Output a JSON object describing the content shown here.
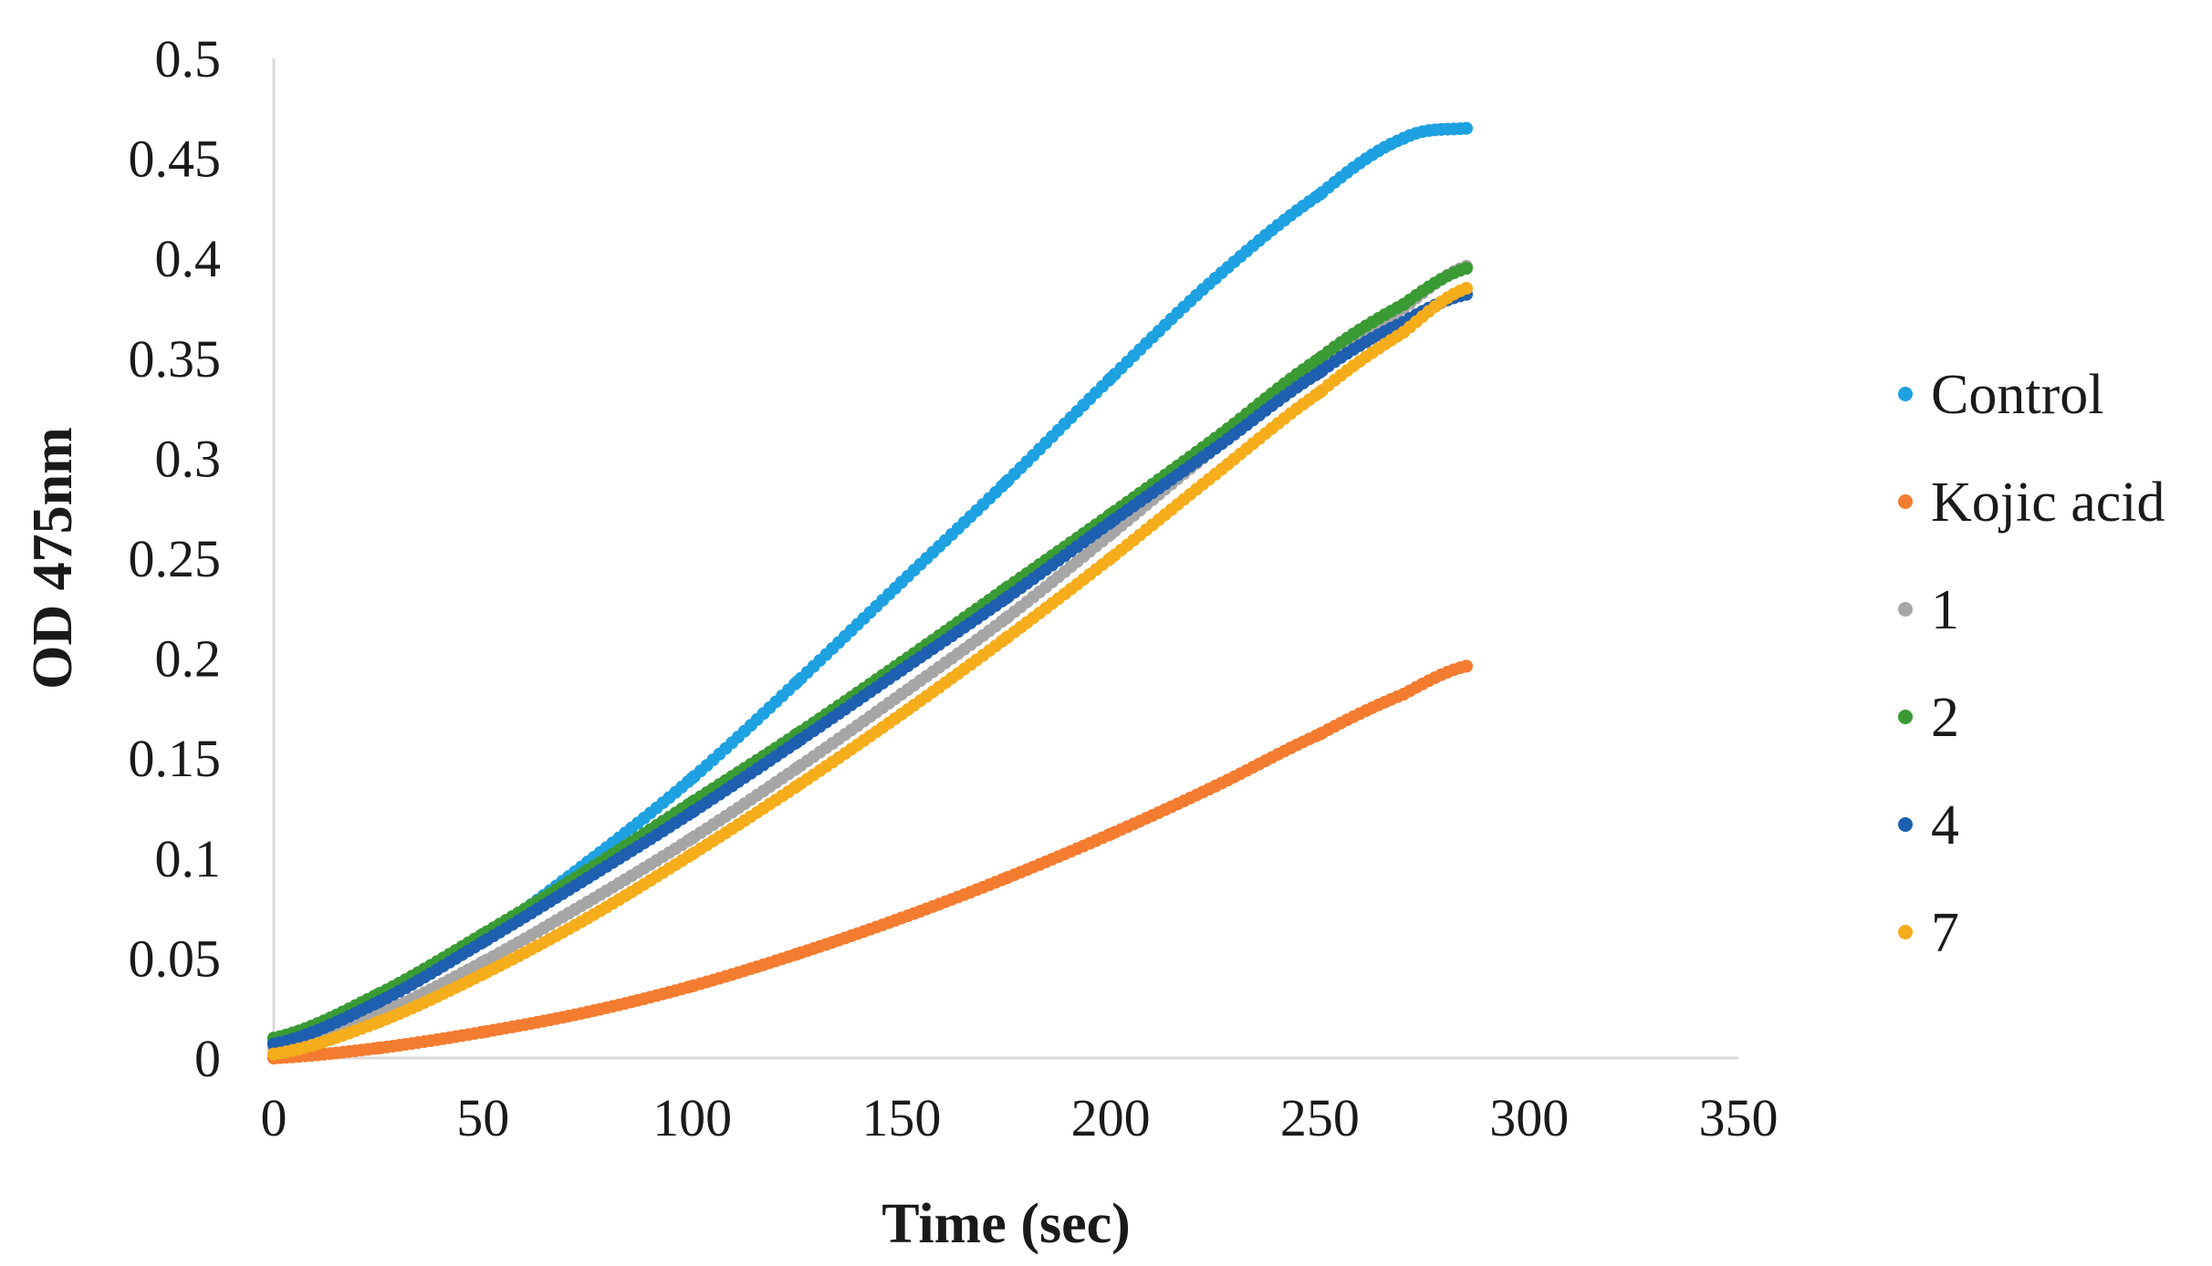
{
  "chart_data": {
    "type": "scatter",
    "title": "",
    "xlabel": "Time (sec)",
    "ylabel": "OD 475nm",
    "xlim": [
      0,
      350
    ],
    "ylim": [
      0,
      0.5
    ],
    "x_ticks": [
      "0",
      "50",
      "100",
      "150",
      "200",
      "250",
      "300",
      "350"
    ],
    "y_ticks": [
      "0",
      "0.05",
      "0.1",
      "0.15",
      "0.2",
      "0.25",
      "0.3",
      "0.35",
      "0.4",
      "0.45",
      "0.5"
    ],
    "grid": false,
    "legend_position": "right",
    "x": [
      0,
      25,
      50,
      75,
      100,
      125,
      150,
      175,
      200,
      225,
      250,
      270,
      285
    ],
    "series": [
      {
        "name": "Control",
        "color": "#1ea1e0",
        "values": [
          0.008,
          0.03,
          0.06,
          0.098,
          0.14,
          0.188,
          0.238,
          0.288,
          0.34,
          0.39,
          0.432,
          0.46,
          0.465
        ]
      },
      {
        "name": "Kojic acid",
        "color": "#f47c30",
        "values": [
          0.0,
          0.005,
          0.013,
          0.023,
          0.036,
          0.052,
          0.07,
          0.09,
          0.112,
          0.136,
          0.162,
          0.182,
          0.196
        ]
      },
      {
        "name": "1",
        "color": "#a6a6a6",
        "values": [
          0.005,
          0.022,
          0.048,
          0.078,
          0.11,
          0.145,
          0.182,
          0.22,
          0.262,
          0.305,
          0.345,
          0.375,
          0.396
        ]
      },
      {
        "name": "2",
        "color": "#3a9b35",
        "values": [
          0.01,
          0.032,
          0.062,
          0.094,
          0.128,
          0.162,
          0.198,
          0.235,
          0.272,
          0.31,
          0.35,
          0.377,
          0.395
        ]
      },
      {
        "name": "4",
        "color": "#1f5fb0",
        "values": [
          0.007,
          0.028,
          0.058,
          0.09,
          0.123,
          0.158,
          0.194,
          0.23,
          0.268,
          0.305,
          0.343,
          0.368,
          0.382
        ]
      },
      {
        "name": "7",
        "color": "#f5ad1b",
        "values": [
          0.002,
          0.018,
          0.042,
          0.07,
          0.102,
          0.136,
          0.172,
          0.21,
          0.25,
          0.292,
          0.333,
          0.363,
          0.385
        ]
      }
    ]
  }
}
